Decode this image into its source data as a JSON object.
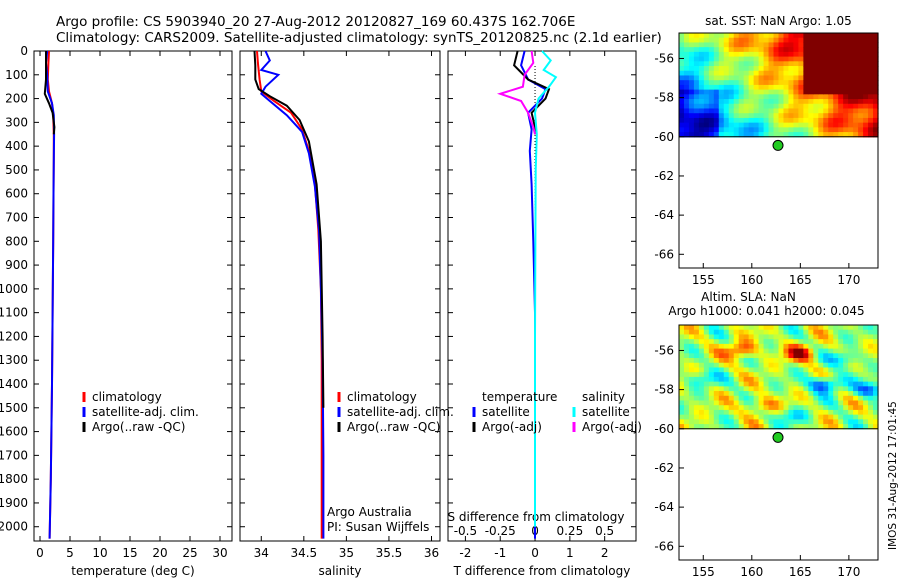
{
  "header": {
    "title_line1": "Argo profile: CS 5903940_20 27-Aug-2012 20120827_169 60.437S 162.706E",
    "title_line2": "Climatology: CARS2009. Satellite-adjusted climatology: synTS_20120825.nc (2.1d earlier)"
  },
  "stamp": "IMOS 31-Aug-2012 17:01:45",
  "colors": {
    "red": "#ff0000",
    "blue": "#0000ff",
    "black": "#000000",
    "cyan": "#00ffff",
    "magenta": "#ff00ff",
    "marker": "#22cc22"
  },
  "chart_data": [
    {
      "type": "line",
      "name": "temperature",
      "xlabel": "temperature (deg C)",
      "xlim": [
        -1,
        32
      ],
      "xticks": [
        0,
        5,
        10,
        15,
        20,
        25,
        30
      ],
      "ylim": [
        2060,
        0
      ],
      "yticks": [
        0,
        100,
        200,
        300,
        400,
        500,
        600,
        700,
        800,
        900,
        1000,
        1100,
        1200,
        1300,
        1400,
        1500,
        1600,
        1700,
        1800,
        1900,
        2000
      ],
      "legend": [
        "climatology",
        "satellite-adj. clim.",
        "Argo(..raw -QC)"
      ],
      "series": [
        {
          "name": "climatology",
          "color": "red",
          "x": [
            1.5,
            1.4,
            1.3,
            1.5,
            2.0,
            2.2,
            2.3,
            2.3,
            2.25,
            2.2,
            2.1,
            2.0,
            1.8,
            1.6
          ],
          "y": [
            0,
            50,
            120,
            170,
            220,
            270,
            350,
            450,
            600,
            800,
            1100,
            1400,
            1800,
            2050
          ]
        },
        {
          "name": "satellite-adj. clim.",
          "color": "blue",
          "x": [
            1.2,
            1.0,
            1.2,
            1.3,
            2.0,
            2.3,
            2.35,
            2.3,
            2.25,
            2.2,
            2.1,
            2.0,
            1.8,
            1.6
          ],
          "y": [
            0,
            50,
            100,
            170,
            220,
            270,
            350,
            450,
            600,
            800,
            1100,
            1400,
            1800,
            2050
          ]
        },
        {
          "name": "Argo(..raw -QC)",
          "color": "black",
          "x": [
            1.0,
            1.0,
            1.0,
            0.8,
            1.5,
            2.1,
            2.4,
            2.3
          ],
          "y": [
            0,
            60,
            120,
            180,
            220,
            260,
            320,
            350
          ]
        }
      ]
    },
    {
      "type": "line",
      "name": "salinity",
      "xlabel": "salinity",
      "xlim": [
        33.75,
        36.1
      ],
      "xticks": [
        34,
        34.5,
        35,
        35.5,
        36
      ],
      "xticklabels": [
        "34",
        "34.5",
        "35",
        "35.5",
        "36"
      ],
      "ylim": [
        2060,
        0
      ],
      "legend": [
        "climatology",
        "satellite-adj. clim.",
        "Argo(..raw -QC)"
      ],
      "annotation": [
        "Argo Australia",
        "PI: Susan Wijffels"
      ],
      "series": [
        {
          "name": "climatology",
          "color": "red",
          "x": [
            33.95,
            33.96,
            33.98,
            34.0,
            34.15,
            34.35,
            34.48,
            34.56,
            34.63,
            34.67,
            34.7,
            34.71,
            34.71,
            34.71
          ],
          "y": [
            0,
            50,
            120,
            170,
            210,
            260,
            330,
            420,
            560,
            750,
            1000,
            1300,
            1700,
            2050
          ]
        },
        {
          "name": "satellite-adj. clim.",
          "color": "blue",
          "x": [
            34.05,
            34.1,
            34.0,
            34.2,
            34.05,
            34.0,
            34.1,
            34.3,
            34.48,
            34.56,
            34.63,
            34.68,
            34.7,
            34.72,
            34.73,
            34.73
          ],
          "y": [
            0,
            40,
            80,
            100,
            150,
            180,
            210,
            270,
            340,
            430,
            570,
            760,
            1000,
            1300,
            1700,
            2050
          ]
        },
        {
          "name": "Argo(..raw -QC)",
          "color": "black",
          "x": [
            33.92,
            33.93,
            33.93,
            33.97,
            34.1,
            34.3,
            34.45,
            34.56,
            34.65,
            34.7,
            34.72,
            34.73
          ],
          "y": [
            0,
            60,
            120,
            160,
            190,
            230,
            290,
            380,
            560,
            800,
            1200,
            1500
          ]
        }
      ]
    },
    {
      "type": "line",
      "name": "difference",
      "xlabel": "T difference from climatology",
      "xlabel2": "S difference from climatology",
      "xlim": [
        -2.5,
        2.9
      ],
      "xticks": [
        -2,
        -1,
        0,
        1,
        2
      ],
      "sticks": [
        -0.5,
        -0.25,
        0,
        0.25,
        0.5
      ],
      "ylim": [
        2060,
        0
      ],
      "legend_temperature": [
        "temperature",
        "satellite",
        "Argo(-adj)"
      ],
      "legend_salinity": [
        "salinity",
        "satellite",
        "Argo(-adj)"
      ],
      "series": [
        {
          "name": "temperature satellite",
          "color": "blue",
          "x": [
            -0.3,
            -0.4,
            -0.2,
            0.3,
            0.2,
            -0.2,
            -0.1,
            -0.15,
            -0.1,
            -0.05,
            0.0,
            0.0,
            0.0
          ],
          "y": [
            0,
            60,
            120,
            160,
            200,
            260,
            330,
            420,
            560,
            800,
            1100,
            1500,
            2050
          ]
        },
        {
          "name": "temperature Argo(-adj)",
          "color": "black",
          "x": [
            -0.5,
            -0.6,
            -0.2,
            0.4,
            0.3,
            -0.1,
            0.0,
            0.0
          ],
          "y": [
            0,
            60,
            120,
            160,
            200,
            260,
            320,
            350
          ]
        },
        {
          "name": "salinity satellite",
          "color": "cyan",
          "x": [
            0.2,
            0.45,
            0.25,
            0.6,
            0.4,
            0.1,
            0.0,
            0.05,
            0.02,
            0.01,
            0.0,
            0.0
          ],
          "y": [
            0,
            40,
            80,
            110,
            150,
            200,
            260,
            350,
            500,
            800,
            1200,
            2000
          ]
        },
        {
          "name": "salinity Argo(-adj)",
          "color": "magenta",
          "x": [
            -0.1,
            -0.05,
            -0.3,
            -0.35,
            -1.0,
            -0.4,
            -0.2,
            -0.05,
            0.0
          ],
          "y": [
            0,
            50,
            100,
            150,
            180,
            210,
            260,
            320,
            350
          ]
        }
      ]
    },
    {
      "type": "heatmap",
      "name": "sst_map",
      "title": "sat. SST: NaN  Argo: 1.05",
      "xticks": [
        155,
        160,
        165,
        170
      ],
      "yticks": [
        -56,
        -58,
        -60,
        -62,
        -64,
        -66
      ],
      "xlim": [
        152.5,
        173
      ],
      "ylim": [
        -66.7,
        -54.7
      ],
      "data_lat_min": -60,
      "argo": {
        "lon": 162.7,
        "lat": -60.44
      }
    },
    {
      "type": "heatmap",
      "name": "sla_map",
      "title1": "Altim. SLA: NaN",
      "title2": "Argo h1000: 0.041 h2000: 0.045",
      "xticks": [
        155,
        160,
        165,
        170
      ],
      "yticks": [
        -56,
        -58,
        -60,
        -62,
        -64,
        -66
      ],
      "xlim": [
        152.5,
        173
      ],
      "ylim": [
        -66.7,
        -54.7
      ],
      "data_lat_min": -60,
      "argo": {
        "lon": 162.7,
        "lat": -60.44
      }
    }
  ]
}
